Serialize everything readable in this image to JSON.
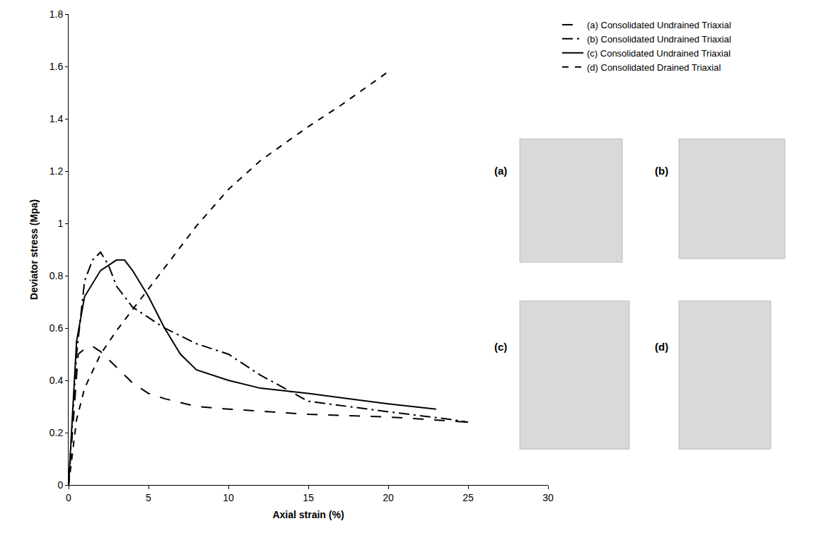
{
  "chart_data": {
    "type": "line",
    "x_label": "Axial strain (%)",
    "y_label": "Deviator stress (Mpa)",
    "xlim": [
      0,
      30
    ],
    "xticks": [
      0,
      5,
      10,
      15,
      20,
      25,
      30
    ],
    "ylim": [
      0,
      1.8
    ],
    "yticks": [
      0,
      0.2,
      0.4,
      0.6,
      0.8,
      1,
      1.2,
      1.4,
      1.6,
      1.8
    ],
    "grid": false,
    "legend": "top right",
    "annotations": [
      "(a)",
      "(b)",
      "(c)",
      "(d)"
    ],
    "series": [
      {
        "name": "(a) Consolidated Undrained Triaxial",
        "color": "#000000",
        "line_style": "longdash",
        "x": [
          0,
          0.3,
          0.6,
          1,
          1.5,
          2,
          3,
          4,
          5,
          6,
          8,
          10,
          15,
          20,
          25
        ],
        "values": [
          0,
          0.25,
          0.5,
          0.52,
          0.53,
          0.51,
          0.45,
          0.39,
          0.35,
          0.33,
          0.3,
          0.29,
          0.27,
          0.26,
          0.24
        ]
      },
      {
        "name": "(b) Consolidated Undrained Triaxial",
        "color": "#000000",
        "line_style": "longdashdot",
        "x": [
          0,
          0.5,
          1,
          1.5,
          2,
          2.5,
          3,
          4,
          5,
          6,
          8,
          10,
          12,
          15,
          20,
          24,
          25
        ],
        "values": [
          0,
          0.5,
          0.78,
          0.86,
          0.89,
          0.84,
          0.76,
          0.68,
          0.64,
          0.6,
          0.54,
          0.5,
          0.42,
          0.32,
          0.28,
          0.25,
          0.24
        ]
      },
      {
        "name": "(c) Consolidated Undrained Triaxial",
        "color": "#000000",
        "line_style": "solid",
        "x": [
          0,
          0.5,
          1,
          2,
          3,
          3.5,
          4,
          5,
          6,
          7,
          8,
          10,
          12,
          15,
          20,
          23
        ],
        "values": [
          0,
          0.55,
          0.72,
          0.82,
          0.86,
          0.86,
          0.82,
          0.72,
          0.6,
          0.5,
          0.44,
          0.4,
          0.37,
          0.35,
          0.31,
          0.29
        ]
      },
      {
        "name": "(d) Consolidated Drained Triaxial",
        "color": "#000000",
        "line_style": "dash",
        "x": [
          0,
          0.5,
          1,
          2,
          3,
          4,
          5,
          6,
          8,
          10,
          12,
          15,
          17,
          20
        ],
        "values": [
          0,
          0.25,
          0.37,
          0.5,
          0.59,
          0.67,
          0.75,
          0.83,
          0.99,
          1.13,
          1.24,
          1.37,
          1.45,
          1.58
        ]
      }
    ]
  }
}
